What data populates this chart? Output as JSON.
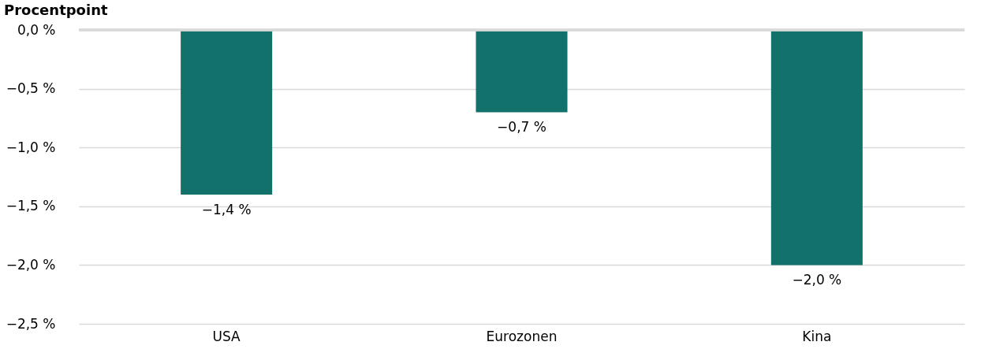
{
  "chart_data": {
    "type": "bar",
    "ylabel": "Procentpoint",
    "categories": [
      "USA",
      "Eurozonen",
      "Kina"
    ],
    "values": [
      -1.4,
      -0.7,
      -2.0
    ],
    "value_labels": [
      "−1,4 %",
      "−0,7 %",
      "−2,0 %"
    ],
    "color": "#12716b",
    "ylim": [
      -2.5,
      0
    ],
    "yticks": [
      {
        "value": 0,
        "label": "0,0 %"
      },
      {
        "value": -0.5,
        "label": "−0,5 %"
      },
      {
        "value": -1.0,
        "label": "−1,0 %"
      },
      {
        "value": -1.5,
        "label": "−1,5 %"
      },
      {
        "value": -2.0,
        "label": "−2,0 %"
      },
      {
        "value": -2.5,
        "label": "−2,5 %"
      }
    ],
    "grid": "y"
  }
}
